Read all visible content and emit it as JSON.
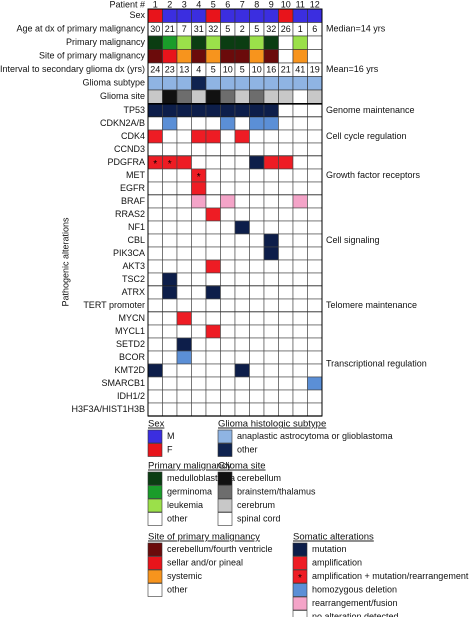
{
  "patient_label": "Patient #",
  "patients": [
    "1",
    "2",
    "3",
    "4",
    "5",
    "6",
    "7",
    "8",
    "9",
    "10",
    "11",
    "12"
  ],
  "clinical": [
    {
      "label": "Sex",
      "colors": [
        "#e8141b",
        "#3b2ee0",
        "#3b2ee0",
        "#3b2ee0",
        "#e8141b",
        "#3b2ee0",
        "#3b2ee0",
        "#3b2ee0",
        "#3b2ee0",
        "#e8141b",
        "#3b2ee0",
        "#3b2ee0"
      ]
    },
    {
      "label": "Age at dx of primary malignancy",
      "values": [
        30,
        21,
        7,
        31,
        32,
        5,
        2,
        5,
        32,
        26,
        1,
        6
      ],
      "note": "Median=14 yrs"
    },
    {
      "label": "Primary malignancy",
      "colors": [
        "#0b3d12",
        "#1a9c2a",
        "#9be04a",
        "#0b3d12",
        "#9be04a",
        "#0b3d12",
        "#0b3d12",
        "#9be04a",
        "#0b3d12",
        "#ffffff",
        "#9be04a",
        "#ffffff"
      ]
    },
    {
      "label": "Site of primary malignancy",
      "colors": [
        "#6b0b0b",
        "#e8141b",
        "#f7941d",
        "#6b0b0b",
        "#f7941d",
        "#6b0b0b",
        "#6b0b0b",
        "#f7941d",
        "#6b0b0b",
        "#ffffff",
        "#f7941d",
        "#ffffff"
      ]
    },
    {
      "label": "Interval to secondary glioma dx (yrs)",
      "values": [
        24,
        23,
        13,
        4,
        5,
        10,
        5,
        10,
        16,
        21,
        41,
        19
      ],
      "note": "Mean=16 yrs"
    },
    {
      "label": "Glioma subtype",
      "colors": [
        "#8fb4e3",
        "#8fb4e3",
        "#8fb4e3",
        "#0f2350",
        "#8fb4e3",
        "#8fb4e3",
        "#8fb4e3",
        "#8fb4e3",
        "#8fb4e3",
        "#8fb4e3",
        "#8fb4e3",
        "#8fb4e3"
      ]
    },
    {
      "label": "Glioma site",
      "colors": [
        "#c8c8c8",
        "#111111",
        "#6d6d6d",
        "#c8c8c8",
        "#111111",
        "#6d6d6d",
        "#c8c8c8",
        "#6d6d6d",
        "#c8c8c8",
        "#c8c8c8",
        "#ffffff",
        "#c8c8c8"
      ]
    }
  ],
  "y_label": "Pathogenic alterations",
  "alteration_groups": [
    {
      "label": "Genome maintenance",
      "genes": [
        {
          "name": "TP53",
          "cells": [
            "mutation",
            "mutation",
            "mutation",
            "mutation",
            "mutation",
            "mutation",
            "mutation",
            "mutation",
            "mutation",
            "no alteration detected",
            "no alteration detected",
            "no alteration detected"
          ]
        }
      ]
    },
    {
      "label": "Cell cycle regulation",
      "genes": [
        {
          "name": "CDKN2A/B",
          "cells": [
            "no alteration detected",
            "homozygous deletion",
            "no alteration detected",
            "no alteration detected",
            "no alteration detected",
            "homozygous deletion",
            "no alteration detected",
            "homozygous deletion",
            "homozygous deletion",
            "no alteration detected",
            "no alteration detected",
            "no alteration detected"
          ]
        },
        {
          "name": "CDK4",
          "cells": [
            "amplification",
            "no alteration detected",
            "no alteration detected",
            "amplification",
            "amplification",
            "no alteration detected",
            "amplification",
            "no alteration detected",
            "no alteration detected",
            "no alteration detected",
            "no alteration detected",
            "no alteration detected"
          ]
        },
        {
          "name": "CCND3",
          "cells": [
            "no alteration detected",
            "no alteration detected",
            "no alteration detected",
            "no alteration detected",
            "no alteration detected",
            "no alteration detected",
            "no alteration detected",
            "no alteration detected",
            "no alteration detected",
            "no alteration detected",
            "no alteration detected",
            "no alteration detected"
          ]
        }
      ]
    },
    {
      "label": "Growth factor receptors",
      "genes": [
        {
          "name": "PDGFRA",
          "cells": [
            "amplification + mutation/rearrangement",
            "amplification + mutation/rearrangement",
            "amplification",
            "no alteration detected",
            "no alteration detected",
            "no alteration detected",
            "no alteration detected",
            "mutation",
            "amplification",
            "amplification",
            "no alteration detected",
            "no alteration detected"
          ]
        },
        {
          "name": "MET",
          "cells": [
            "no alteration detected",
            "no alteration detected",
            "no alteration detected",
            "amplification + mutation/rearrangement",
            "no alteration detected",
            "no alteration detected",
            "no alteration detected",
            "no alteration detected",
            "no alteration detected",
            "no alteration detected",
            "no alteration detected",
            "no alteration detected"
          ]
        },
        {
          "name": "EGFR",
          "cells": [
            "no alteration detected",
            "no alteration detected",
            "no alteration detected",
            "amplification",
            "no alteration detected",
            "no alteration detected",
            "no alteration detected",
            "no alteration detected",
            "no alteration detected",
            "no alteration detected",
            "no alteration detected",
            "no alteration detected"
          ]
        }
      ]
    },
    {
      "label": "Cell signaling",
      "genes": [
        {
          "name": "BRAF",
          "cells": [
            "no alteration detected",
            "no alteration detected",
            "no alteration detected",
            "rearrangement/fusion",
            "no alteration detected",
            "rearrangement/fusion",
            "no alteration detected",
            "no alteration detected",
            "no alteration detected",
            "no alteration detected",
            "rearrangement/fusion",
            "no alteration detected"
          ]
        },
        {
          "name": "RRAS2",
          "cells": [
            "no alteration detected",
            "no alteration detected",
            "no alteration detected",
            "no alteration detected",
            "amplification",
            "no alteration detected",
            "no alteration detected",
            "no alteration detected",
            "no alteration detected",
            "no alteration detected",
            "no alteration detected",
            "no alteration detected"
          ]
        },
        {
          "name": "NF1",
          "cells": [
            "no alteration detected",
            "no alteration detected",
            "no alteration detected",
            "no alteration detected",
            "no alteration detected",
            "no alteration detected",
            "mutation",
            "no alteration detected",
            "no alteration detected",
            "no alteration detected",
            "no alteration detected",
            "no alteration detected"
          ]
        },
        {
          "name": "CBL",
          "cells": [
            "no alteration detected",
            "no alteration detected",
            "no alteration detected",
            "no alteration detected",
            "no alteration detected",
            "no alteration detected",
            "no alteration detected",
            "no alteration detected",
            "mutation",
            "no alteration detected",
            "no alteration detected",
            "no alteration detected"
          ]
        },
        {
          "name": "PIK3CA",
          "cells": [
            "no alteration detected",
            "no alteration detected",
            "no alteration detected",
            "no alteration detected",
            "no alteration detected",
            "no alteration detected",
            "no alteration detected",
            "no alteration detected",
            "mutation",
            "no alteration detected",
            "no alteration detected",
            "no alteration detected"
          ]
        },
        {
          "name": "AKT3",
          "cells": [
            "no alteration detected",
            "no alteration detected",
            "no alteration detected",
            "no alteration detected",
            "amplification",
            "no alteration detected",
            "no alteration detected",
            "no alteration detected",
            "no alteration detected",
            "no alteration detected",
            "no alteration detected",
            "no alteration detected"
          ]
        },
        {
          "name": "TSC2",
          "cells": [
            "no alteration detected",
            "mutation",
            "no alteration detected",
            "no alteration detected",
            "no alteration detected",
            "no alteration detected",
            "no alteration detected",
            "no alteration detected",
            "no alteration detected",
            "no alteration detected",
            "no alteration detected",
            "no alteration detected"
          ]
        }
      ]
    },
    {
      "label": "Telomere maintenance",
      "genes": [
        {
          "name": "ATRX",
          "cells": [
            "no alteration detected",
            "mutation",
            "no alteration detected",
            "no alteration detected",
            "mutation",
            "no alteration detected",
            "no alteration detected",
            "no alteration detected",
            "no alteration detected",
            "no alteration detected",
            "no alteration detected",
            "no alteration detected"
          ]
        },
        {
          "name": "TERT promoter",
          "cells": [
            "no alteration detected",
            "no alteration detected",
            "no alteration detected",
            "no alteration detected",
            "no alteration detected",
            "no alteration detected",
            "no alteration detected",
            "no alteration detected",
            "no alteration detected",
            "no alteration detected",
            "no alteration detected",
            "no alteration detected"
          ]
        }
      ]
    },
    {
      "label": "Transcriptional regulation",
      "genes": [
        {
          "name": "MYCN",
          "cells": [
            "no alteration detected",
            "no alteration detected",
            "amplification",
            "no alteration detected",
            "no alteration detected",
            "no alteration detected",
            "no alteration detected",
            "no alteration detected",
            "no alteration detected",
            "no alteration detected",
            "no alteration detected",
            "no alteration detected"
          ]
        },
        {
          "name": "MYCL1",
          "cells": [
            "no alteration detected",
            "no alteration detected",
            "no alteration detected",
            "no alteration detected",
            "amplification",
            "no alteration detected",
            "no alteration detected",
            "no alteration detected",
            "no alteration detected",
            "no alteration detected",
            "no alteration detected",
            "no alteration detected"
          ]
        },
        {
          "name": "SETD2",
          "cells": [
            "no alteration detected",
            "no alteration detected",
            "mutation",
            "no alteration detected",
            "no alteration detected",
            "no alteration detected",
            "no alteration detected",
            "no alteration detected",
            "no alteration detected",
            "no alteration detected",
            "no alteration detected",
            "no alteration detected"
          ]
        },
        {
          "name": "BCOR",
          "cells": [
            "no alteration detected",
            "no alteration detected",
            "homozygous deletion",
            "no alteration detected",
            "no alteration detected",
            "no alteration detected",
            "no alteration detected",
            "no alteration detected",
            "no alteration detected",
            "no alteration detected",
            "no alteration detected",
            "no alteration detected"
          ]
        },
        {
          "name": "KMT2D",
          "cells": [
            "mutation",
            "no alteration detected",
            "no alteration detected",
            "no alteration detected",
            "no alteration detected",
            "no alteration detected",
            "mutation",
            "no alteration detected",
            "no alteration detected",
            "no alteration detected",
            "no alteration detected",
            "no alteration detected"
          ]
        },
        {
          "name": "SMARCB1",
          "cells": [
            "no alteration detected",
            "no alteration detected",
            "no alteration detected",
            "no alteration detected",
            "no alteration detected",
            "no alteration detected",
            "no alteration detected",
            "no alteration detected",
            "no alteration detected",
            "no alteration detected",
            "no alteration detected",
            "homozygous deletion"
          ]
        },
        {
          "name": "IDH1/2",
          "cells": [
            "no alteration detected",
            "no alteration detected",
            "no alteration detected",
            "no alteration detected",
            "no alteration detected",
            "no alteration detected",
            "no alteration detected",
            "no alteration detected",
            "no alteration detected",
            "no alteration detected",
            "no alteration detected",
            "no alteration detected"
          ]
        },
        {
          "name": "H3F3A/HIST1H3B",
          "cells": [
            "no alteration detected",
            "no alteration detected",
            "no alteration detected",
            "no alteration detected",
            "no alteration detected",
            "no alteration detected",
            "no alteration detected",
            "no alteration detected",
            "no alteration detected",
            "no alteration detected",
            "no alteration detected",
            "no alteration detected"
          ]
        }
      ]
    }
  ],
  "legends": [
    {
      "title": "Sex",
      "items": [
        {
          "label": "M",
          "color": "#3b2ee0"
        },
        {
          "label": "F",
          "color": "#e8141b"
        }
      ]
    },
    {
      "title": "Glioma histologic subtype",
      "items": [
        {
          "label": "anaplastic astrocytoma or glioblastoma",
          "color": "#8fb4e3"
        },
        {
          "label": "other",
          "color": "#0f2350"
        }
      ]
    },
    {
      "title": "Primary malignancy",
      "items": [
        {
          "label": "medulloblastoma",
          "color": "#0b3d12"
        },
        {
          "label": "germinoma",
          "color": "#1a9c2a"
        },
        {
          "label": "leukemia",
          "color": "#9be04a"
        },
        {
          "label": "other",
          "color": "#ffffff"
        }
      ]
    },
    {
      "title": "Glioma site",
      "items": [
        {
          "label": "cerebellum",
          "color": "#111111"
        },
        {
          "label": "brainstem/thalamus",
          "color": "#6d6d6d"
        },
        {
          "label": "cerebrum",
          "color": "#c8c8c8"
        },
        {
          "label": "spinal cord",
          "color": "#ffffff"
        }
      ]
    },
    {
      "title": "Site of primary malignancy",
      "items": [
        {
          "label": "cerebellum/fourth ventricle",
          "color": "#6b0b0b"
        },
        {
          "label": "sellar and/or pineal",
          "color": "#e8141b"
        },
        {
          "label": "systemic",
          "color": "#f7941d"
        },
        {
          "label": "other",
          "color": "#ffffff"
        }
      ]
    },
    {
      "title": "Somatic alterations",
      "items": [
        {
          "label": "mutation",
          "color": "#0d1e4a"
        },
        {
          "label": "amplification",
          "color": "#ee1c24"
        },
        {
          "label": "amplification + mutation/rearrangement",
          "color": "#ee1c24",
          "symbol": "*"
        },
        {
          "label": "homozygous deletion",
          "color": "#5b8fd6"
        },
        {
          "label": "rearrangement/fusion",
          "color": "#f4a4c8"
        },
        {
          "label": "no alteration detected",
          "color": "#ffffff"
        }
      ]
    }
  ]
}
